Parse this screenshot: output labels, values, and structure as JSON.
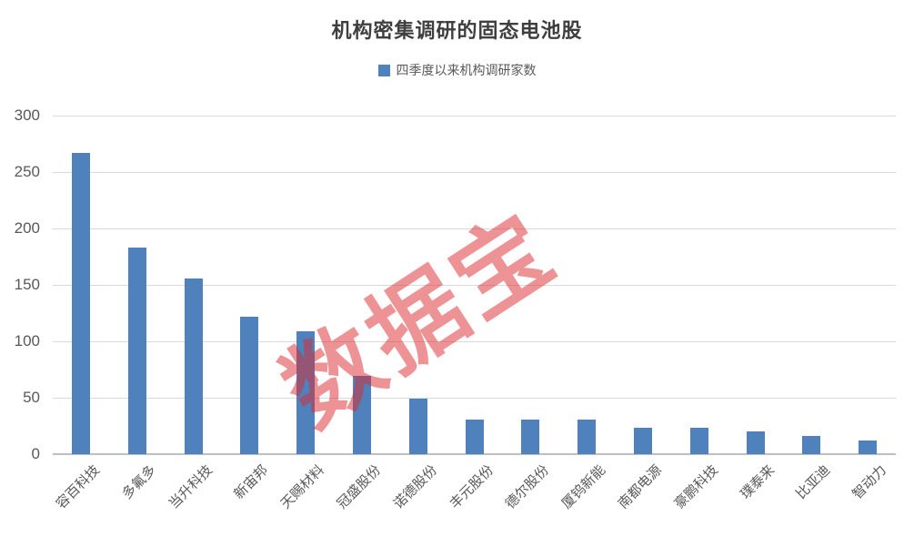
{
  "title": "机构密集调研的固态电池股",
  "legend": {
    "label": "四季度以来机构调研家数"
  },
  "watermark": {
    "text": "数据宝",
    "color": "#DD2A30",
    "opacity": 0.5
  },
  "colors": {
    "bar": "#4F81BD",
    "grid": "#D9D9D9",
    "axis_line": "#BFBFBF",
    "tick_text": "#595959",
    "title_text": "#3F3F3F",
    "background": "#FFFFFF"
  },
  "chart_data": {
    "type": "bar",
    "title": "机构密集调研的固态电池股",
    "legend_entries": [
      "四季度以来机构调研家数"
    ],
    "legend_position": "top",
    "grid": true,
    "categories": [
      "容百科技",
      "多氟多",
      "当升科技",
      "新宙邦",
      "天赐材料",
      "冠盛股份",
      "诺德股份",
      "丰元股份",
      "德尔股份",
      "厦钨新能",
      "南都电源",
      "豪鹏科技",
      "璞泰来",
      "比亚迪",
      "智动力"
    ],
    "values": [
      267,
      183,
      156,
      122,
      109,
      69,
      49,
      31,
      31,
      31,
      23,
      23,
      20,
      16,
      12
    ],
    "xlabel": "",
    "ylabel": "",
    "ylim": [
      0,
      300
    ],
    "yticks": [
      0,
      50,
      100,
      150,
      200,
      250,
      300
    ]
  }
}
